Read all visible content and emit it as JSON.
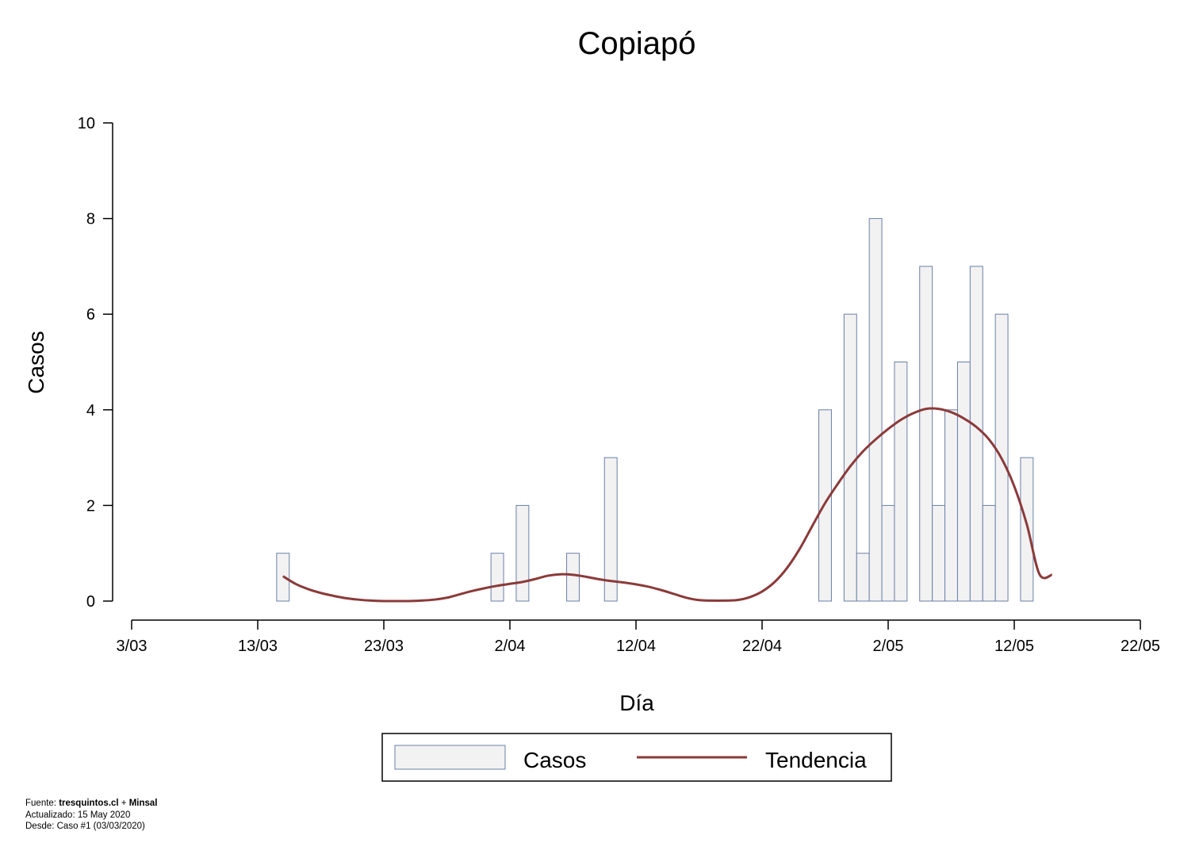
{
  "chart_data": {
    "type": "bar",
    "title": "Copiapó",
    "xlabel": "Día",
    "ylabel": "Casos",
    "ylim": [
      0,
      10
    ],
    "yticks": [
      0,
      2,
      4,
      6,
      8,
      10
    ],
    "xlim": [
      "2020-03-03",
      "2020-05-22"
    ],
    "xticks": [
      "3/03",
      "13/03",
      "23/03",
      "2/04",
      "12/04",
      "22/04",
      "2/05",
      "12/05",
      "22/05"
    ],
    "grid": false,
    "legend_position": "bottom",
    "series": [
      {
        "name": "Casos",
        "type": "bar",
        "color": "#f2f2f2",
        "edge_color": "#6b7fa8",
        "x": [
          "2020-03-15",
          "2020-04-01",
          "2020-04-03",
          "2020-04-07",
          "2020-04-10",
          "2020-04-27",
          "2020-04-29",
          "2020-04-30",
          "2020-05-01",
          "2020-05-02",
          "2020-05-03",
          "2020-05-05",
          "2020-05-06",
          "2020-05-07",
          "2020-05-08",
          "2020-05-09",
          "2020-05-10",
          "2020-05-11",
          "2020-05-13"
        ],
        "values": [
          1,
          1,
          2,
          1,
          3,
          4,
          6,
          1,
          8,
          2,
          5,
          7,
          2,
          4,
          5,
          7,
          2,
          6,
          3
        ]
      },
      {
        "name": "Tendencia",
        "type": "line",
        "color": "#8b3a3a",
        "x": [
          "2020-03-15",
          "2020-03-16",
          "2020-03-17",
          "2020-03-18",
          "2020-03-19",
          "2020-03-20",
          "2020-03-21",
          "2020-03-22",
          "2020-03-23",
          "2020-03-24",
          "2020-03-25",
          "2020-03-26",
          "2020-03-27",
          "2020-03-28",
          "2020-03-29",
          "2020-03-30",
          "2020-03-31",
          "2020-04-01",
          "2020-04-02",
          "2020-04-03",
          "2020-04-04",
          "2020-04-05",
          "2020-04-06",
          "2020-04-07",
          "2020-04-08",
          "2020-04-09",
          "2020-04-10",
          "2020-04-11",
          "2020-04-12",
          "2020-04-13",
          "2020-04-14",
          "2020-04-15",
          "2020-04-16",
          "2020-04-17",
          "2020-04-18",
          "2020-04-19",
          "2020-04-20",
          "2020-04-21",
          "2020-04-22",
          "2020-04-23",
          "2020-04-24",
          "2020-04-25",
          "2020-04-26",
          "2020-04-27",
          "2020-04-28",
          "2020-04-29",
          "2020-04-30",
          "2020-05-01",
          "2020-05-02",
          "2020-05-03",
          "2020-05-04",
          "2020-05-05",
          "2020-05-06",
          "2020-05-07",
          "2020-05-08",
          "2020-05-09",
          "2020-05-10",
          "2020-05-11",
          "2020-05-12",
          "2020-05-13",
          "2020-05-14",
          "2020-05-15"
        ],
        "values": [
          0.52,
          0.36,
          0.25,
          0.17,
          0.11,
          0.06,
          0.03,
          0.01,
          0.0,
          0.0,
          0.0,
          0.01,
          0.03,
          0.07,
          0.14,
          0.21,
          0.27,
          0.32,
          0.36,
          0.4,
          0.46,
          0.53,
          0.56,
          0.55,
          0.51,
          0.46,
          0.42,
          0.39,
          0.35,
          0.3,
          0.23,
          0.15,
          0.07,
          0.02,
          0.01,
          0.01,
          0.02,
          0.08,
          0.2,
          0.4,
          0.7,
          1.1,
          1.58,
          2.05,
          2.45,
          2.82,
          3.13,
          3.38,
          3.6,
          3.79,
          3.93,
          4.02,
          4.02,
          3.95,
          3.82,
          3.64,
          3.38,
          2.98,
          2.4,
          1.6,
          0.56,
          0.55
        ]
      }
    ]
  },
  "legend": {
    "items": [
      {
        "label": "Casos",
        "kind": "bar"
      },
      {
        "label": "Tendencia",
        "kind": "line"
      }
    ]
  },
  "footer": {
    "source_prefix": "Fuente: ",
    "source_site": "tresquintos.cl",
    "source_sep": " + ",
    "source_org": "Minsal",
    "updated": "Actualizado: 15 May 2020",
    "since": "Desde: Caso #1  (03/03/2020)"
  }
}
